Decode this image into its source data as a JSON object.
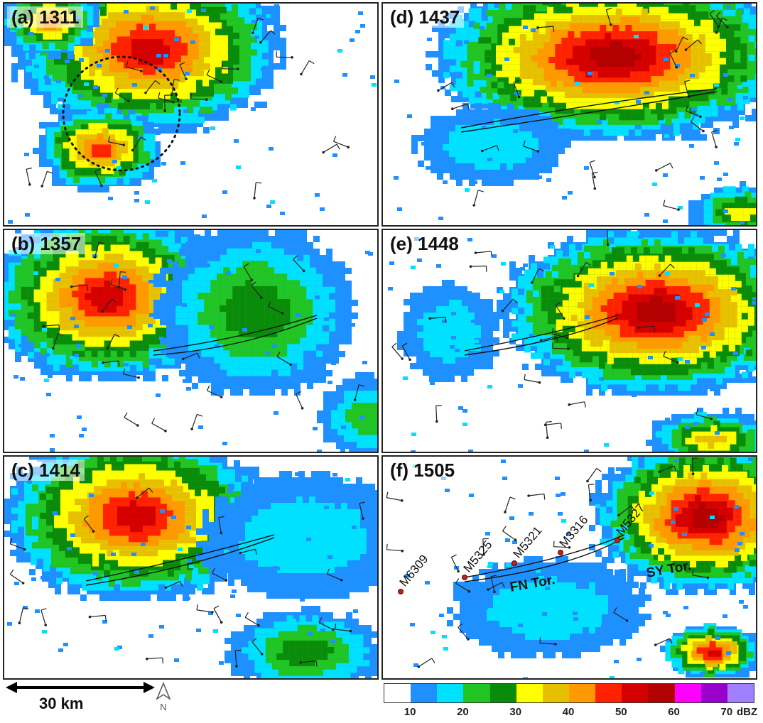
{
  "panels": [
    {
      "label": "(a) 1311",
      "key": "a"
    },
    {
      "label": "(d) 1437",
      "key": "d"
    },
    {
      "label": "(b) 1357",
      "key": "b"
    },
    {
      "label": "(e) 1448",
      "key": "e"
    },
    {
      "label": "(c) 1414",
      "key": "c"
    },
    {
      "label": "(f) 1505",
      "key": "f"
    }
  ],
  "stations": [
    "M6309",
    "M5325",
    "M5321",
    "M3316",
    "M5327"
  ],
  "tornado_labels": [
    "FN Tor.",
    "SY Tor."
  ],
  "scale": {
    "label": "30 km"
  },
  "north_label": "N",
  "colorbar": {
    "colors": [
      "#ffffff",
      "#1e90ff",
      "#00e0ff",
      "#21c421",
      "#0a8c0a",
      "#ffff00",
      "#e6c000",
      "#ff9900",
      "#ff2200",
      "#d40000",
      "#b30000",
      "#ff00ff",
      "#9900cc",
      "#a080ff"
    ],
    "ticks": [
      "10",
      "20",
      "30",
      "40",
      "50",
      "60",
      "70"
    ],
    "units": "dBZ"
  }
}
